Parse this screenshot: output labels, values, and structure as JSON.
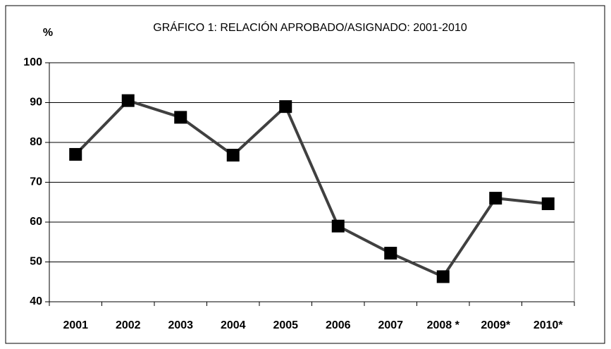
{
  "chart_data": {
    "type": "line",
    "title": "GRÁFICO 1: RELACIÓN APROBADO/ASIGNADO: 2001-2010",
    "y_label": "%",
    "categories": [
      "2001",
      "2002",
      "2003",
      "2004",
      "2005",
      "2006",
      "2007",
      "2008 *",
      "2009*",
      "2010*"
    ],
    "series": [
      {
        "name": "Relación aprobado/asignado",
        "color": "#404040",
        "marker_color": "#000000",
        "values": [
          77,
          90.5,
          86.3,
          76.8,
          89,
          59,
          52.2,
          46.3,
          66,
          64.6
        ]
      }
    ],
    "ylim": [
      40,
      100
    ],
    "yticks": [
      40,
      50,
      60,
      70,
      80,
      90,
      100
    ],
    "grid": true,
    "legend": false
  }
}
